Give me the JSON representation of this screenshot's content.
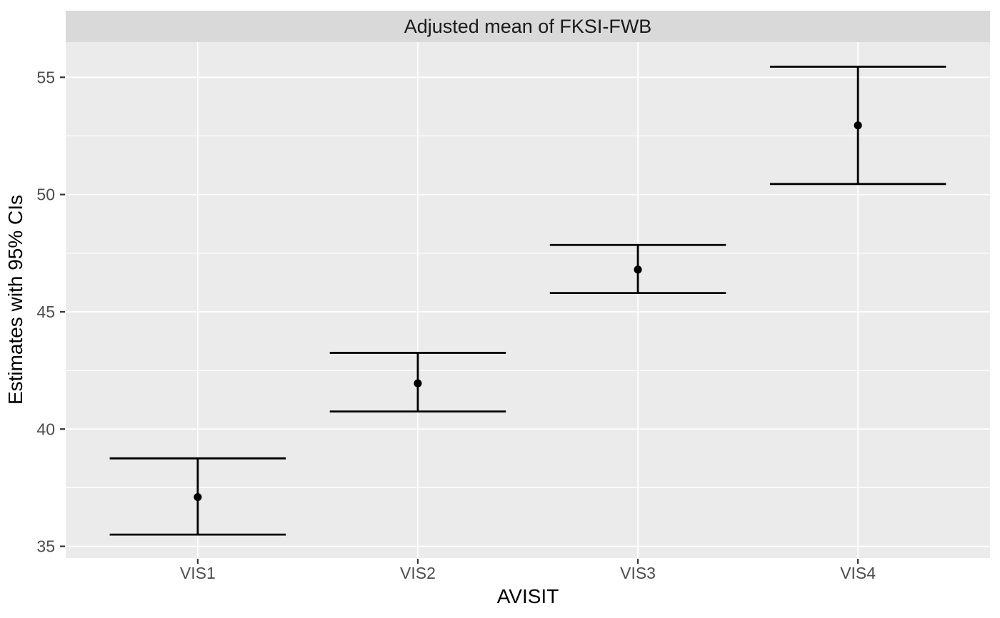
{
  "chart_data": {
    "type": "scatter",
    "subtype": "point-estimates-with-95ci-errorbars",
    "title": "Adjusted mean of FKSI-FWB",
    "xlabel": "AVISIT",
    "ylabel": "Estimates with 95% CIs",
    "categories": [
      "VIS1",
      "VIS2",
      "VIS3",
      "VIS4"
    ],
    "series": [
      {
        "name": "Adjusted mean of FKSI-FWB",
        "values": [
          37.1,
          41.95,
          46.8,
          52.95
        ],
        "ci_lower": [
          35.5,
          40.75,
          45.8,
          50.45
        ],
        "ci_upper": [
          38.75,
          43.25,
          47.85,
          55.45
        ]
      }
    ],
    "yticks": [
      35,
      40,
      45,
      50,
      55
    ],
    "ylim": [
      34.5,
      56.5
    ],
    "grid": "white major and minor horizontal lines plus white vertical line at each category center, on gray panel",
    "legend": "none",
    "errorbar_cap_width_fraction": 0.8,
    "style": {
      "panel_bg": "#ebebeb",
      "strip_bg": "#d9d9d9",
      "grid_color": "#ffffff",
      "data_color": "#000000",
      "tick_label_color": "#4d4d4d",
      "axis_title_color": "#000000",
      "outer_bg": "#ffffff"
    }
  }
}
